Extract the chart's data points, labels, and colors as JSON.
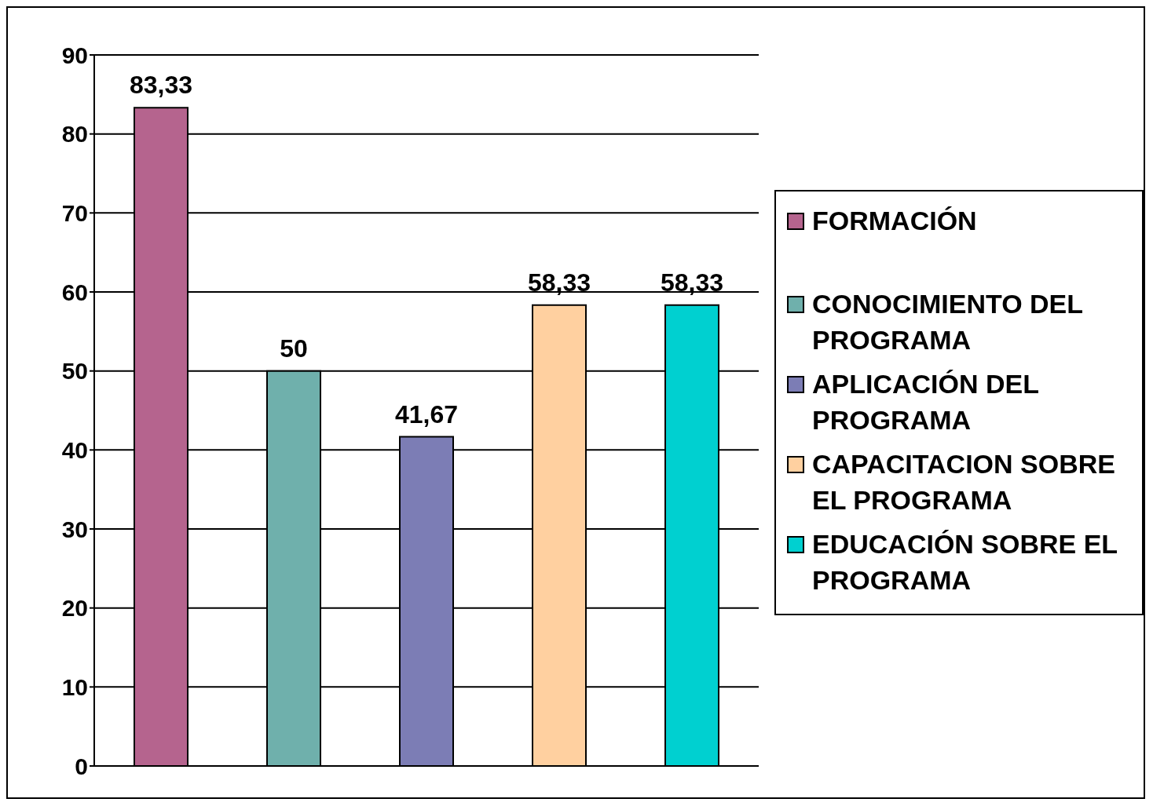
{
  "chart_data": {
    "type": "bar",
    "categories": [
      null
    ],
    "series": [
      {
        "name": "FORMACIÓN",
        "color": "#b5648e",
        "values": [
          83.33
        ],
        "value_labels": [
          "83,33"
        ]
      },
      {
        "name": "CONOCIMIENTO DEL PROGRAMA",
        "color": "#6fb0ac",
        "values": [
          50
        ],
        "value_labels": [
          "50"
        ]
      },
      {
        "name": "APLICACIÓN DEL PROGRAMA",
        "color": "#7c7db5",
        "values": [
          41.67
        ],
        "value_labels": [
          "41,67"
        ]
      },
      {
        "name": "CAPACITACION SOBRE EL PROGRAMA",
        "color": "#ffd0a0",
        "values": [
          58.33
        ],
        "value_labels": [
          "58,33"
        ]
      },
      {
        "name": "EDUCACIÓN SOBRE EL PROGRAMA",
        "color": "#00d0d0",
        "values": [
          58.33
        ],
        "value_labels": [
          "58,33"
        ]
      }
    ],
    "ylim": [
      0,
      90
    ],
    "yticks": [
      0,
      10,
      20,
      30,
      40,
      50,
      60,
      70,
      80,
      90
    ],
    "grid": "y",
    "legend": "right"
  }
}
